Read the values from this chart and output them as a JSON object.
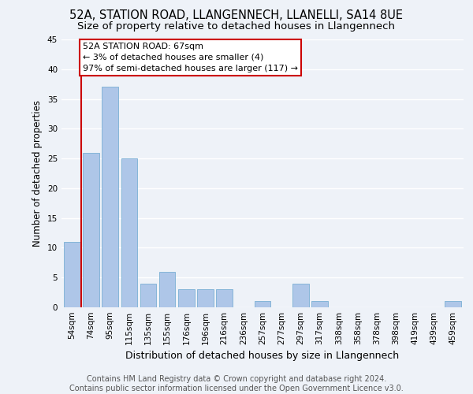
{
  "title": "52A, STATION ROAD, LLANGENNECH, LLANELLI, SA14 8UE",
  "subtitle": "Size of property relative to detached houses in Llangennech",
  "xlabel": "Distribution of detached houses by size in Llangennech",
  "ylabel": "Number of detached properties",
  "categories": [
    "54sqm",
    "74sqm",
    "95sqm",
    "115sqm",
    "135sqm",
    "155sqm",
    "176sqm",
    "196sqm",
    "216sqm",
    "236sqm",
    "257sqm",
    "277sqm",
    "297sqm",
    "317sqm",
    "338sqm",
    "358sqm",
    "378sqm",
    "398sqm",
    "419sqm",
    "439sqm",
    "459sqm"
  ],
  "values": [
    11,
    26,
    37,
    25,
    4,
    6,
    3,
    3,
    3,
    0,
    1,
    0,
    4,
    1,
    0,
    0,
    0,
    0,
    0,
    0,
    1
  ],
  "bar_color": "#aec6e8",
  "bar_edge_color": "#7aafd4",
  "annotation_box_text_line1": "52A STATION ROAD: 67sqm",
  "annotation_box_text_line2": "← 3% of detached houses are smaller (4)",
  "annotation_box_text_line3": "97% of semi-detached houses are larger (117) →",
  "annotation_box_color": "#cc0000",
  "red_line_x": 0.5,
  "ylim": [
    0,
    45
  ],
  "yticks": [
    0,
    5,
    10,
    15,
    20,
    25,
    30,
    35,
    40,
    45
  ],
  "background_color": "#eef2f8",
  "grid_color": "#ffffff",
  "footer_text": "Contains HM Land Registry data © Crown copyright and database right 2024.\nContains public sector information licensed under the Open Government Licence v3.0.",
  "title_fontsize": 10.5,
  "subtitle_fontsize": 9.5,
  "xlabel_fontsize": 9,
  "ylabel_fontsize": 8.5,
  "tick_fontsize": 7.5,
  "annotation_fontsize": 8,
  "footer_fontsize": 7
}
